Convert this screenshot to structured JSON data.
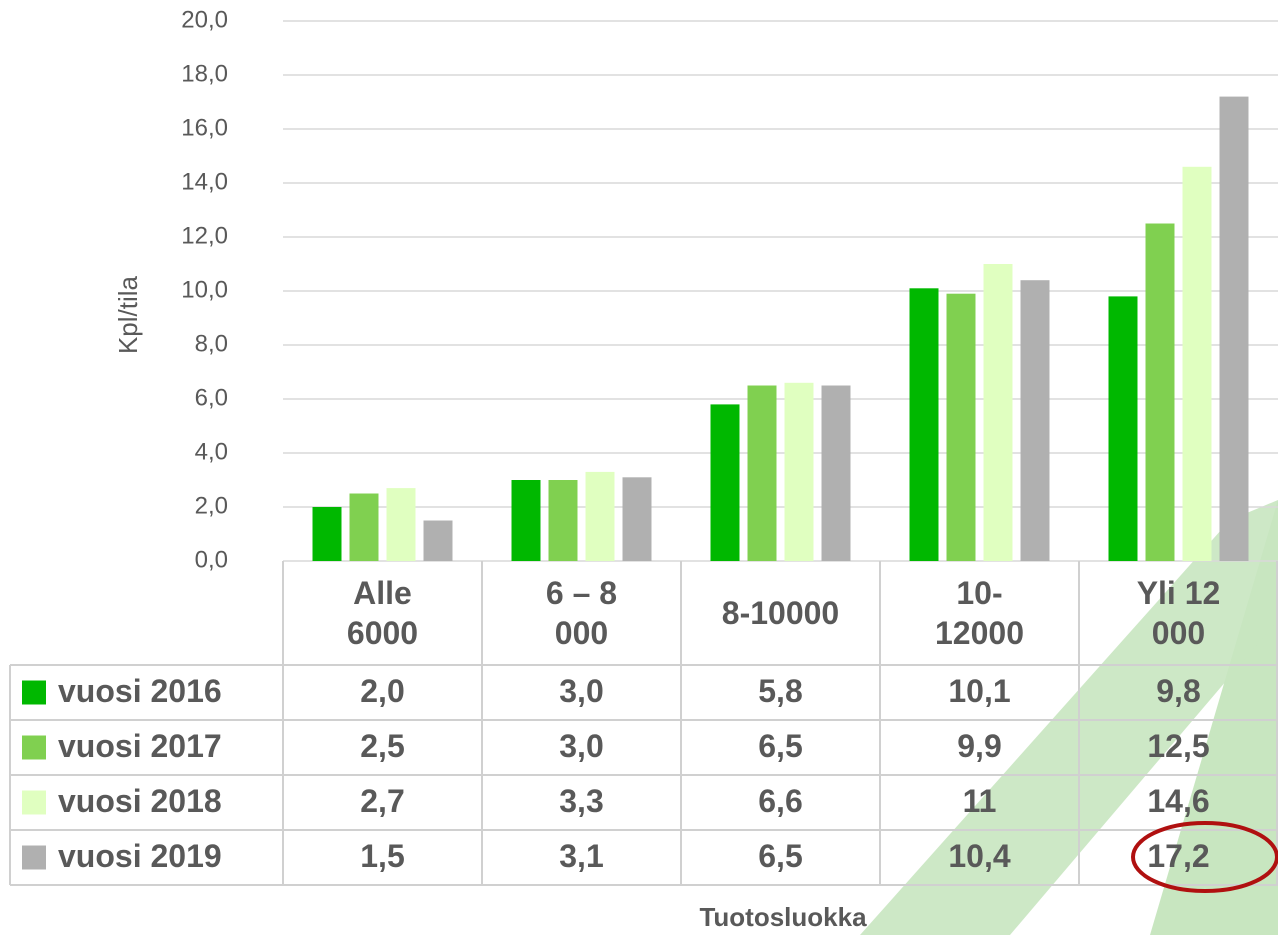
{
  "chart_data": {
    "type": "bar",
    "y_label": "Kpl/tila",
    "x_label": "Tuotosluokka",
    "categories": [
      "Alle\n6000",
      "6 – 8\n000",
      "8-10000",
      "10-\n12000",
      "Yli 12\n000"
    ],
    "series": [
      {
        "name": "vuosi 2016",
        "color": "#00b800",
        "values": [
          2.0,
          3.0,
          5.8,
          10.1,
          9.8
        ],
        "value_labels": [
          "2,0",
          "3,0",
          "5,8",
          "10,1",
          "9,8"
        ]
      },
      {
        "name": "vuosi 2017",
        "color": "#80d050",
        "values": [
          2.5,
          3.0,
          6.5,
          9.9,
          12.5
        ],
        "value_labels": [
          "2,5",
          "3,0",
          "6,5",
          "9,9",
          "12,5"
        ]
      },
      {
        "name": "vuosi 2018",
        "color": "#e0ffc0",
        "values": [
          2.7,
          3.3,
          6.6,
          11,
          14.6
        ],
        "value_labels": [
          "2,7",
          "3,3",
          "6,6",
          "11",
          "14,6"
        ]
      },
      {
        "name": "vuosi 2019",
        "color": "#b0b0b0",
        "values": [
          1.5,
          3.1,
          6.5,
          10.4,
          17.2
        ],
        "value_labels": [
          "1,5",
          "3,1",
          "6,5",
          "10,4",
          "17,2"
        ]
      }
    ],
    "ylim": [
      0,
      20
    ],
    "yticks": [
      {
        "value": 0,
        "label": "0,0"
      },
      {
        "value": 2,
        "label": "2,0"
      },
      {
        "value": 4,
        "label": "4,0"
      },
      {
        "value": 6,
        "label": "6,0"
      },
      {
        "value": 8,
        "label": "8,0"
      },
      {
        "value": 10,
        "label": "10,0"
      },
      {
        "value": 12,
        "label": "12,0"
      },
      {
        "value": 14,
        "label": "14,0"
      },
      {
        "value": 16,
        "label": "16,0"
      },
      {
        "value": 18,
        "label": "18,0"
      },
      {
        "value": 20,
        "label": "20,0"
      }
    ],
    "grid": true
  }
}
